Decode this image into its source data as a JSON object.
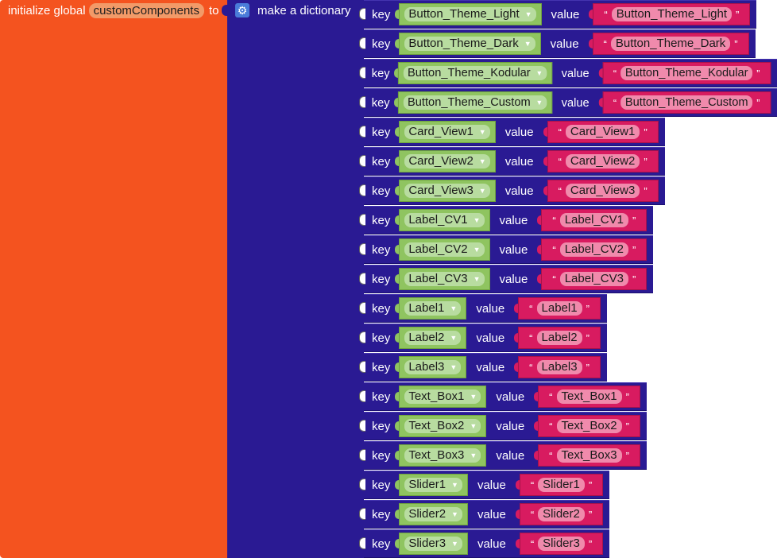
{
  "init_block": {
    "prefix": "initialize global",
    "variable": "customComponents",
    "suffix": "to"
  },
  "dictionary_block": {
    "label": "make a dictionary",
    "key_label": "key",
    "value_label": "value"
  },
  "pairs": [
    {
      "key": "Button_Theme_Light",
      "value": "Button_Theme_Light"
    },
    {
      "key": "Button_Theme_Dark",
      "value": "Button_Theme_Dark"
    },
    {
      "key": "Button_Theme_Kodular",
      "value": "Button_Theme_Kodular"
    },
    {
      "key": "Button_Theme_Custom",
      "value": "Button_Theme_Custom"
    },
    {
      "key": "Card_View1",
      "value": "Card_View1"
    },
    {
      "key": "Card_View2",
      "value": "Card_View2"
    },
    {
      "key": "Card_View3",
      "value": "Card_View3"
    },
    {
      "key": "Label_CV1",
      "value": "Label_CV1"
    },
    {
      "key": "Label_CV2",
      "value": "Label_CV2"
    },
    {
      "key": "Label_CV3",
      "value": "Label_CV3"
    },
    {
      "key": "Label1",
      "value": "Label1"
    },
    {
      "key": "Label2",
      "value": "Label2"
    },
    {
      "key": "Label3",
      "value": "Label3"
    },
    {
      "key": "Text_Box1",
      "value": "Text_Box1"
    },
    {
      "key": "Text_Box2",
      "value": "Text_Box2"
    },
    {
      "key": "Text_Box3",
      "value": "Text_Box3"
    },
    {
      "key": "Slider1",
      "value": "Slider1"
    },
    {
      "key": "Slider2",
      "value": "Slider2"
    },
    {
      "key": "Slider3",
      "value": "Slider3"
    }
  ],
  "quotes": {
    "open": "“",
    "close": "”"
  },
  "icons": {
    "dictionary": "gear-icon",
    "dropdown": "chevron-down-icon"
  },
  "colors": {
    "variables_block": "#f4531f",
    "dictionary_block": "#2a1a93",
    "component_block": "#8fc460",
    "text_block": "#d81b60"
  }
}
